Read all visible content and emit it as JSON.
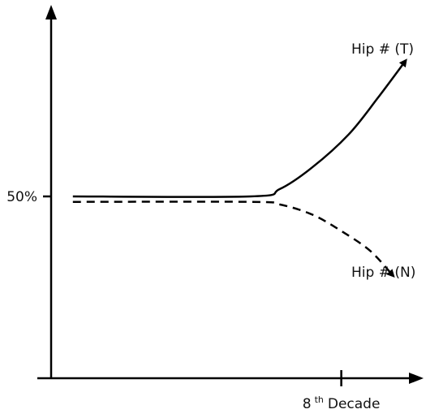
{
  "chart_data": {
    "type": "line",
    "xlabel": {
      "base": "8",
      "sup": "th",
      "rest": "Decade"
    },
    "ylabel": "",
    "x_ticks": [
      {
        "x": 8,
        "label_base": "8",
        "label_sup": "th",
        "label_rest": "Decade"
      }
    ],
    "y_ticks": [
      {
        "y": 50,
        "label": "50%"
      }
    ],
    "xlim": [
      0,
      10
    ],
    "ylim": [
      0,
      100
    ],
    "grid": false,
    "legend": "none",
    "series": [
      {
        "name": "Hip # (T)",
        "style": "solid",
        "color": "#000000",
        "arrow_end": true,
        "points": [
          [
            0.6,
            50
          ],
          [
            5.5,
            50
          ],
          [
            6.3,
            52
          ],
          [
            7.2,
            58
          ],
          [
            8.2,
            67
          ],
          [
            9.0,
            77
          ],
          [
            9.75,
            87
          ]
        ]
      },
      {
        "name": "Hip # (N)",
        "style": "dashed",
        "color": "#000000",
        "arrow_end": true,
        "points": [
          [
            0.6,
            48.5
          ],
          [
            5.5,
            48.5
          ],
          [
            6.3,
            47.8
          ],
          [
            7.2,
            45
          ],
          [
            8.0,
            40.5
          ],
          [
            8.8,
            35
          ],
          [
            9.4,
            28.5
          ]
        ]
      }
    ]
  }
}
